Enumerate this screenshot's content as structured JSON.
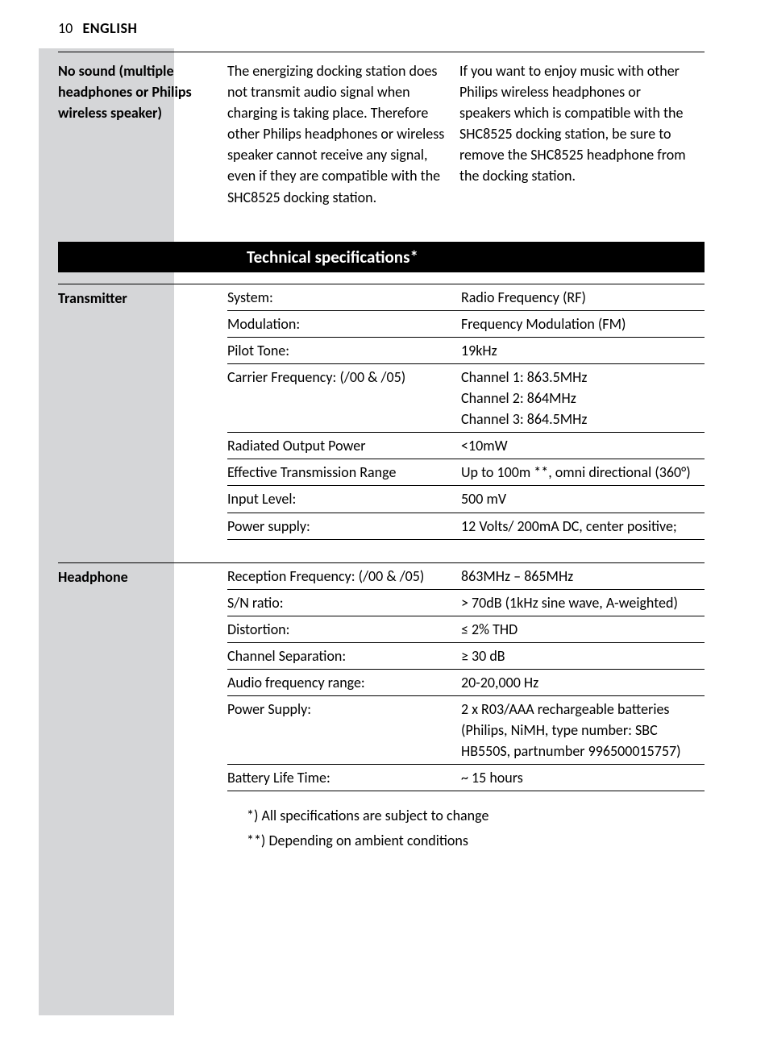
{
  "page_header": {
    "number": "10",
    "language": "ENGLISH"
  },
  "troubleshoot": {
    "label": "No sound (multiple headphones or Philips wireless speaker)",
    "cause": "The energizing docking station does not transmit audio signal when charging is taking place. Therefore other Philips headphones or wireless speaker cannot receive any signal, even if they are compatible with the SHC8525 docking station.",
    "solution": "If you want to enjoy music with other Philips wireless headphones or speakers which is compatible with the SHC8525 docking station, be sure to remove the SHC8525 headphone from the docking station."
  },
  "section_title": "Technical specifications*",
  "transmitter": {
    "label": "Transmitter",
    "rows": [
      {
        "k": "System:",
        "v": [
          "Radio Frequency (RF)"
        ]
      },
      {
        "k": "Modulation:",
        "v": [
          "Frequency Modulation (FM)"
        ]
      },
      {
        "k": "Pilot Tone:",
        "v": [
          "19kHz"
        ]
      },
      {
        "k": "Carrier Frequency: (/00 & /05)",
        "v": [
          "Channel 1: 863.5MHz",
          "Channel 2: 864MHz",
          "Channel 3: 864.5MHz"
        ]
      },
      {
        "k": "Radiated Output Power",
        "v": [
          "<10mW"
        ]
      },
      {
        "k": "Effective Transmission Range",
        "v": [
          "Up to 100m **, omni directional (360°)"
        ]
      },
      {
        "k": "Input Level:",
        "v": [
          "500 mV"
        ]
      },
      {
        "k": "Power supply:",
        "v": [
          "12 Volts/ 200mA DC, center positive;"
        ]
      }
    ]
  },
  "headphone": {
    "label": "Headphone",
    "rows": [
      {
        "k": "Reception Frequency: (/00 & /05)",
        "v": [
          "863MHz – 865MHz"
        ]
      },
      {
        "k": "S/N ratio:",
        "v": [
          "> 70dB (1kHz sine wave, A-weighted)"
        ]
      },
      {
        "k": "Distortion:",
        "v": [
          "≤ 2% THD"
        ]
      },
      {
        "k": "Channel Separation:",
        "v": [
          "≥ 30 dB"
        ]
      },
      {
        "k": "Audio frequency range:",
        "v": [
          "20-20,000 Hz"
        ]
      },
      {
        "k": "Power Supply:",
        "v": [
          "2 x R03/AAA rechargeable batteries (Philips, NiMH, type number: SBC HB550S, partnumber 996500015757)"
        ]
      },
      {
        "k": "Battery Life Time:",
        "v": [
          "~ 15 hours"
        ]
      }
    ]
  },
  "footnotes": [
    "*)  All specifications are subject to change",
    "**) Depending on ambient conditions"
  ]
}
